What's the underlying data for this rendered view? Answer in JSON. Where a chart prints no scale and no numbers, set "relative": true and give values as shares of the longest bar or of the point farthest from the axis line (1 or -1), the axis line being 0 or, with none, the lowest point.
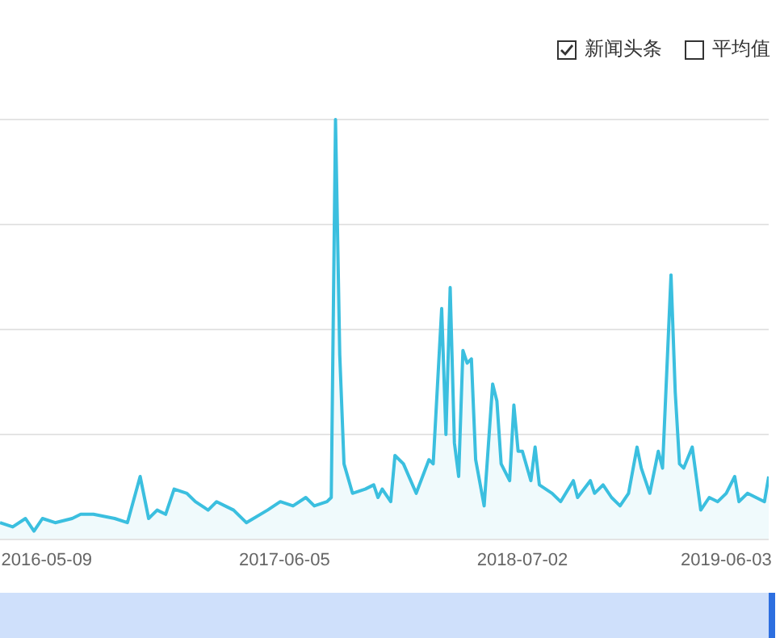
{
  "chart_data": {
    "type": "area",
    "relative": true,
    "grid": "y",
    "legend": "top right",
    "marker": "none",
    "xlim": [
      "2016-02-22",
      "2019-08-12"
    ],
    "xticks": [
      "2016-05-09",
      "2017-06-05",
      "2018-07-02",
      "2019-06-03"
    ],
    "annotations": [
      "平均值"
    ],
    "series": [
      {
        "name": "新闻头条",
        "color": "#3bbfdf",
        "x": [
          "2016-02-22",
          "2016-03-14",
          "2016-04-04",
          "2016-04-18",
          "2016-05-02",
          "2016-05-23",
          "2016-06-20",
          "2016-07-04",
          "2016-07-25",
          "2016-08-29",
          "2016-09-19",
          "2016-10-10",
          "2016-10-24",
          "2016-11-07",
          "2016-11-21",
          "2016-12-05",
          "2016-12-26",
          "2017-01-09",
          "2017-01-30",
          "2017-02-13",
          "2017-03-13",
          "2017-04-03",
          "2017-05-08",
          "2017-05-29",
          "2017-06-19",
          "2017-07-10",
          "2017-07-24",
          "2017-08-14",
          "2017-08-21",
          "2017-08-28",
          "2017-09-04",
          "2017-09-11",
          "2017-09-25",
          "2017-10-16",
          "2017-10-30",
          "2017-11-06",
          "2017-11-13",
          "2017-11-27",
          "2017-12-04",
          "2017-12-18",
          "2018-01-08",
          "2018-01-29",
          "2018-02-05",
          "2018-02-19",
          "2018-02-26",
          "2018-03-05",
          "2018-03-12",
          "2018-03-19",
          "2018-03-26",
          "2018-04-02",
          "2018-04-09",
          "2018-04-16",
          "2018-04-30",
          "2018-05-14",
          "2018-05-21",
          "2018-05-28",
          "2018-06-11",
          "2018-06-18",
          "2018-06-25",
          "2018-07-02",
          "2018-07-16",
          "2018-07-23",
          "2018-07-30",
          "2018-08-20",
          "2018-09-03",
          "2018-09-24",
          "2018-10-01",
          "2018-10-22",
          "2018-10-29",
          "2018-11-12",
          "2018-11-26",
          "2018-12-10",
          "2018-12-24",
          "2019-01-07",
          "2019-01-14",
          "2019-01-28",
          "2019-02-11",
          "2019-02-18",
          "2019-03-04",
          "2019-03-11",
          "2019-03-18",
          "2019-03-25",
          "2019-04-08",
          "2019-04-22",
          "2019-05-06",
          "2019-05-20",
          "2019-06-03",
          "2019-06-17",
          "2019-06-24",
          "2019-07-08",
          "2019-07-22",
          "2019-08-05",
          "2019-08-12"
        ],
        "values": [
          0.04,
          0.03,
          0.05,
          0.02,
          0.05,
          0.04,
          0.05,
          0.06,
          0.06,
          0.05,
          0.04,
          0.15,
          0.05,
          0.07,
          0.06,
          0.12,
          0.11,
          0.09,
          0.07,
          0.09,
          0.07,
          0.04,
          0.07,
          0.09,
          0.08,
          0.1,
          0.08,
          0.09,
          0.1,
          1,
          0.44,
          0.18,
          0.11,
          0.12,
          0.13,
          0.1,
          0.12,
          0.09,
          0.2,
          0.18,
          0.11,
          0.19,
          0.18,
          0.55,
          0.25,
          0.6,
          0.23,
          0.15,
          0.45,
          0.42,
          0.43,
          0.19,
          0.08,
          0.37,
          0.33,
          0.18,
          0.14,
          0.32,
          0.21,
          0.21,
          0.14,
          0.22,
          0.13,
          0.11,
          0.09,
          0.14,
          0.1,
          0.14,
          0.11,
          0.13,
          0.1,
          0.08,
          0.11,
          0.22,
          0.17,
          0.11,
          0.21,
          0.17,
          0.63,
          0.35,
          0.18,
          0.17,
          0.22,
          0.07,
          0.1,
          0.09,
          0.11,
          0.15,
          0.09,
          0.11,
          0.1,
          0.09,
          0.15
        ]
      }
    ]
  }
}
